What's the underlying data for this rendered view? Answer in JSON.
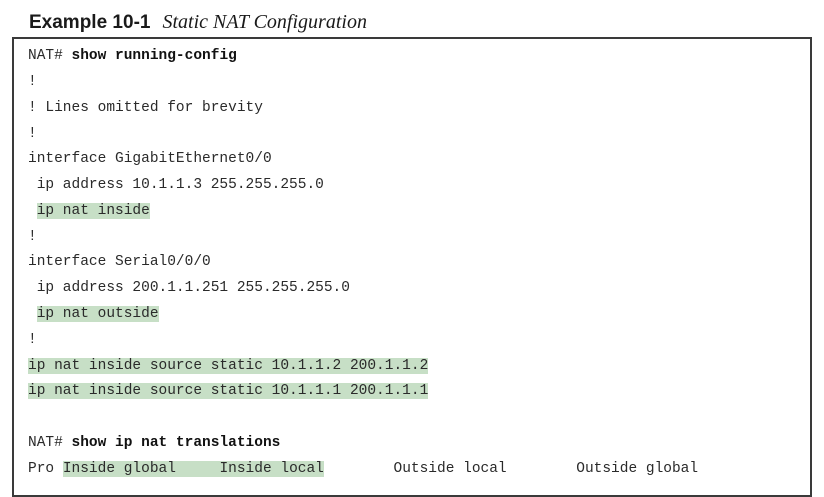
{
  "caption": {
    "label": "Example 10-1",
    "title": "Static NAT Configuration"
  },
  "lines": [
    {
      "prompt": "NAT# ",
      "command": "show running-config"
    },
    {
      "text": "!"
    },
    {
      "text": "! Lines omitted for brevity"
    },
    {
      "text": "!"
    },
    {
      "text": "interface GigabitEthernet0/0"
    },
    {
      "text": " ip address 10.1.1.3 255.255.255.0"
    },
    {
      "lead": " ",
      "highlight": "ip nat inside"
    },
    {
      "text": "!"
    },
    {
      "text": "interface Serial0/0/0"
    },
    {
      "text": " ip address 200.1.1.251 255.255.255.0"
    },
    {
      "lead": " ",
      "highlight": "ip nat outside"
    },
    {
      "text": "!"
    },
    {
      "highlight": "ip nat inside source static 10.1.1.2 200.1.1.2"
    },
    {
      "highlight": "ip nat inside source static 10.1.1.1 200.1.1.1"
    },
    {
      "text": ""
    },
    {
      "prompt": "NAT# ",
      "command": "show ip nat translations"
    }
  ],
  "table_header": {
    "pro": "Pro ",
    "inside_global": "Inside global",
    "gap1": "     ",
    "inside_local": "Inside local",
    "gap2": "        ",
    "outside_local": "Outside local",
    "gap3": "        ",
    "outside_global": "Outside global"
  },
  "colors": {
    "highlight": "#c7dfc6",
    "border": "#3a3a3a",
    "text": "#2a2a2a"
  }
}
